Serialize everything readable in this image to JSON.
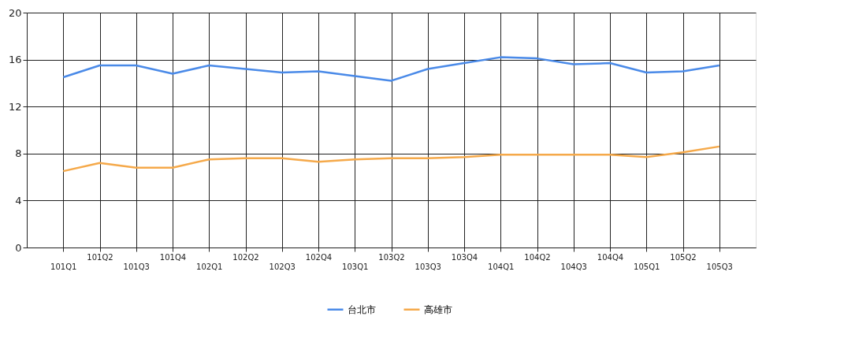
{
  "chart_data": {
    "type": "line",
    "categories": [
      "101Q1",
      "101Q2",
      "101Q3",
      "101Q4",
      "102Q1",
      "102Q2",
      "102Q3",
      "102Q4",
      "103Q1",
      "103Q2",
      "103Q3",
      "103Q4",
      "104Q1",
      "104Q2",
      "104Q3",
      "104Q4",
      "105Q1",
      "105Q2",
      "105Q3"
    ],
    "series": [
      {
        "name": "台北市",
        "color": "#4a8ae8",
        "values": [
          14.5,
          15.5,
          15.5,
          14.8,
          15.5,
          15.2,
          14.9,
          15.0,
          14.6,
          14.2,
          15.2,
          15.7,
          16.2,
          16.1,
          15.6,
          15.7,
          14.9,
          15.0,
          15.5
        ]
      },
      {
        "name": "高雄市",
        "color": "#f5a94a",
        "values": [
          6.5,
          7.2,
          6.8,
          6.8,
          7.5,
          7.6,
          7.6,
          7.3,
          7.5,
          7.6,
          7.6,
          7.7,
          7.9,
          7.9,
          7.9,
          7.9,
          7.7,
          8.1,
          8.6
        ]
      }
    ],
    "ylim": [
      0,
      20
    ],
    "yticks": [
      0,
      4,
      8,
      12,
      16,
      20
    ],
    "grid": true,
    "legend": "bottom",
    "marker": "none",
    "line_style": "solid"
  }
}
